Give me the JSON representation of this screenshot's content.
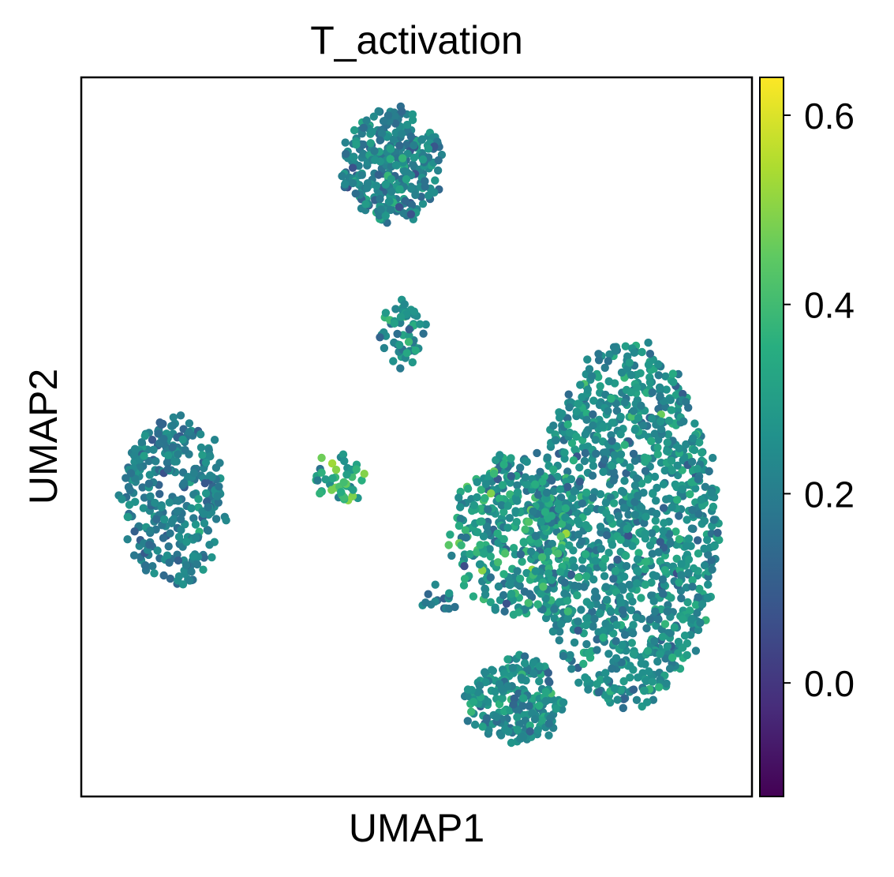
{
  "chart_data": {
    "type": "scatter",
    "title": "T_activation",
    "xlabel": "UMAP1",
    "ylabel": "UMAP2",
    "xticks": "none",
    "yticks": "none",
    "grid": false,
    "colorbar": {
      "label": "",
      "colormap": "viridis",
      "range": [
        -0.12,
        0.64
      ],
      "ticks": [
        0.0,
        0.2,
        0.4,
        0.6
      ],
      "tick_labels": [
        "0.0",
        "0.2",
        "0.4",
        "0.6"
      ],
      "placement": "right"
    },
    "marker_color_low": "#440154",
    "marker_color_mid": "#21918c",
    "marker_color_high": "#fde725",
    "clusters": [
      {
        "cx": -8.6,
        "cy": 0.8,
        "rx": 1.35,
        "ry": 1.9,
        "n": 320,
        "mean": 0.2,
        "sd": 0.05
      },
      {
        "cx": -2.9,
        "cy": 8.5,
        "rx": 1.3,
        "ry": 1.3,
        "n": 320,
        "mean": 0.22,
        "sd": 0.06
      },
      {
        "cx": -2.6,
        "cy": 4.6,
        "rx": 0.55,
        "ry": 0.75,
        "n": 60,
        "mean": 0.24,
        "sd": 0.06
      },
      {
        "cx": -4.2,
        "cy": 1.3,
        "rx": 0.6,
        "ry": 0.55,
        "n": 45,
        "mean": 0.35,
        "sd": 0.1
      },
      {
        "cx": 3.2,
        "cy": 0.2,
        "rx": 2.4,
        "ry": 4.2,
        "n": 1200,
        "mean": 0.25,
        "sd": 0.06
      },
      {
        "cx": 0.2,
        "cy": 0.0,
        "rx": 1.5,
        "ry": 1.8,
        "n": 350,
        "mean": 0.28,
        "sd": 0.08
      },
      {
        "cx": 0.3,
        "cy": -3.8,
        "rx": 1.3,
        "ry": 1.0,
        "n": 220,
        "mean": 0.24,
        "sd": 0.06
      },
      {
        "cx": -1.6,
        "cy": -1.5,
        "rx": 0.6,
        "ry": 0.25,
        "n": 15,
        "mean": 0.2,
        "sd": 0.05
      }
    ],
    "xlim": [
      -11.0,
      6.5
    ],
    "ylim": [
      -6.0,
      10.5
    ]
  }
}
